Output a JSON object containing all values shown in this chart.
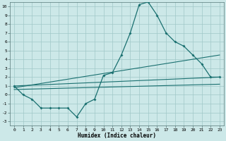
{
  "title": "",
  "xlabel": "Humidex (Indice chaleur)",
  "background_color": "#cce8e8",
  "grid_color": "#a0c8c8",
  "line_color": "#1a7070",
  "xlim": [
    -0.5,
    23.5
  ],
  "ylim": [
    -3.5,
    10.5
  ],
  "xticks": [
    0,
    1,
    2,
    3,
    4,
    5,
    6,
    7,
    8,
    9,
    10,
    11,
    12,
    13,
    14,
    15,
    16,
    17,
    18,
    19,
    20,
    21,
    22,
    23
  ],
  "yticks": [
    -3,
    -2,
    -1,
    0,
    1,
    2,
    3,
    4,
    5,
    6,
    7,
    8,
    9,
    10
  ],
  "curve1_x": [
    0,
    1,
    2,
    3,
    4,
    5,
    6,
    7,
    8,
    9,
    10,
    11,
    12,
    13,
    14,
    15,
    16,
    17,
    18,
    19,
    20,
    21,
    22,
    23
  ],
  "curve1_y": [
    1.0,
    0.0,
    -0.5,
    -1.5,
    -1.5,
    -1.5,
    -1.5,
    -2.5,
    -1.0,
    -0.5,
    2.2,
    2.5,
    4.5,
    7.0,
    10.2,
    10.5,
    9.0,
    7.0,
    6.0,
    5.5,
    4.5,
    3.5,
    2.0,
    2.0
  ],
  "curve2_x": [
    0,
    23
  ],
  "curve2_y": [
    1.0,
    2.0
  ],
  "curve3_x": [
    0,
    23
  ],
  "curve3_y": [
    0.8,
    4.5
  ],
  "curve4_x": [
    0,
    23
  ],
  "curve4_y": [
    0.6,
    1.2
  ]
}
